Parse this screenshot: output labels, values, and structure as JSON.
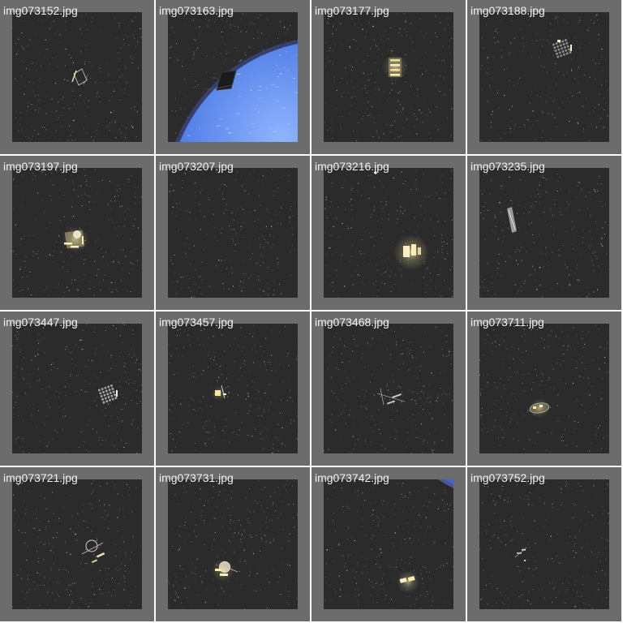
{
  "thumbnails": [
    {
      "filename": "img073152.jpg",
      "subject": "satellite-wireframe",
      "earth": "none"
    },
    {
      "filename": "img073197.jpg",
      "subject": "satellite-bright",
      "earth": "none"
    },
    {
      "filename": "img073447.jpg",
      "subject": "satellite-grid-panel",
      "earth": "none"
    },
    {
      "filename": "img073721.jpg",
      "subject": "satellite-dish",
      "earth": "none"
    },
    {
      "filename": "img073163.jpg",
      "subject": "satellite-dark-silhouette",
      "earth": "large-bottom-right"
    },
    {
      "filename": "img073207.jpg",
      "subject": "none",
      "earth": "none"
    },
    {
      "filename": "img073457.jpg",
      "subject": "satellite-small-bright",
      "earth": "none"
    },
    {
      "filename": "img073731.jpg",
      "subject": "satellite-dish-bright",
      "earth": "none"
    },
    {
      "filename": "img073177.jpg",
      "subject": "satellite-stacked-bright",
      "earth": "none"
    },
    {
      "filename": "img073216.jpg",
      "subject": "satellite-glow-large",
      "earth": "none"
    },
    {
      "filename": "img073468.jpg",
      "subject": "satellite-faint",
      "earth": "none"
    },
    {
      "filename": "img073742.jpg",
      "subject": "satellite-glow-pair",
      "earth": "limb-top-right"
    },
    {
      "filename": "img073188.jpg",
      "subject": "satellite-grid-panel-dim",
      "earth": "none"
    },
    {
      "filename": "img073235.jpg",
      "subject": "satellite-edge-on",
      "earth": "none"
    },
    {
      "filename": "img073711.jpg",
      "subject": "satellite-oval-glow",
      "earth": "none"
    },
    {
      "filename": "img073752.jpg",
      "subject": "satellite-tiny-faint",
      "earth": "none"
    }
  ],
  "colors": {
    "tile_frame": "#6c6c6c",
    "space": "#2b2b2b",
    "earth_blue": "#3f6fe0",
    "glow": "#fff3c0",
    "label_text": "#f2f2f2"
  }
}
